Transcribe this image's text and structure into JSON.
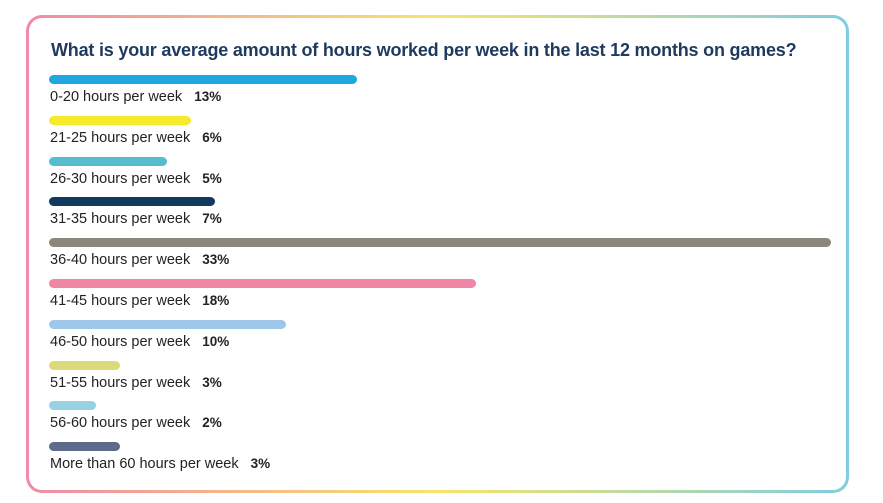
{
  "chart_data": {
    "type": "bar",
    "orientation": "horizontal",
    "title": "What is your average amount of hours worked per week in the last 12 months on games?",
    "categories": [
      "0-20 hours per week",
      "21-25 hours per week",
      "26-30 hours per week",
      "31-35 hours per week",
      "36-40 hours per week",
      "41-45 hours per week",
      "46-50 hours per week",
      "51-55 hours per week",
      "56-60 hours per week",
      "More than 60 hours per week"
    ],
    "values": [
      13,
      6,
      5,
      7,
      33,
      18,
      10,
      3,
      2,
      3
    ],
    "value_labels": [
      "13%",
      "6%",
      "5%",
      "7%",
      "33%",
      "18%",
      "10%",
      "3%",
      "2%",
      "3%"
    ],
    "colors": [
      "#1ea7e1",
      "#f6ea2a",
      "#58bccf",
      "#123a5e",
      "#8c877c",
      "#ef86a5",
      "#9ec7ea",
      "#dcdb7c",
      "#96d2e2",
      "#5e6a8c"
    ],
    "xlim": [
      0,
      33
    ],
    "grid": false,
    "legend": "none"
  }
}
